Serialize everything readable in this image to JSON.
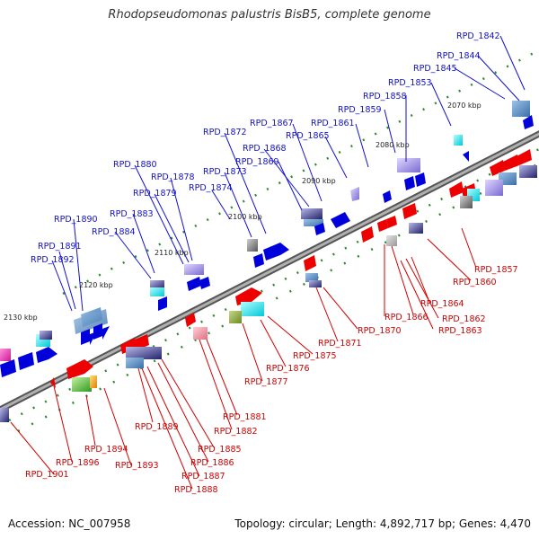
{
  "title": "Rhodopseudomonas palustris BisB5, complete genome",
  "footer": {
    "accession_label": "Accession:",
    "accession": "NC_007958",
    "topology_text": "Topology: circular; Length: 4,892,717 bp; Genes: 4,470"
  },
  "colors": {
    "forward_label": "#1010d0",
    "reverse_label": "#d00000",
    "backbone": "#8a8a8a"
  },
  "kbp_ticks": [
    "2070 kbp",
    "2080 kbp",
    "2090 kbp",
    "2100 kbp",
    "2110 kbp",
    "2120 kbp",
    "2130 kbp"
  ],
  "forward_genes": [
    "RPD_1842",
    "RPD_1844",
    "RPD_1845",
    "RPD_1853",
    "RPD_1858",
    "RPD_1859",
    "RPD_1861",
    "RPD_1865",
    "RPD_1867",
    "RPD_1868",
    "RPD_1869",
    "RPD_1872",
    "RPD_1873",
    "RPD_1874",
    "RPD_1878",
    "RPD_1879",
    "RPD_1880",
    "RPD_1883",
    "RPD_1884",
    "RPD_1890",
    "RPD_1891",
    "RPD_1892"
  ],
  "reverse_genes": [
    "RPD_1857",
    "RPD_1860",
    "RPD_1864",
    "RPD_1862",
    "RPD_1863",
    "RPD_1866",
    "RPD_1870",
    "RPD_1871",
    "RPD_1875",
    "RPD_1876",
    "RPD_1877",
    "RPD_1881",
    "RPD_1882",
    "RPD_1885",
    "RPD_1886",
    "RPD_1887",
    "RPD_1888",
    "RPD_1889",
    "RPD_1893",
    "RPD_1894",
    "RPD_1896",
    "RPD_1901"
  ]
}
